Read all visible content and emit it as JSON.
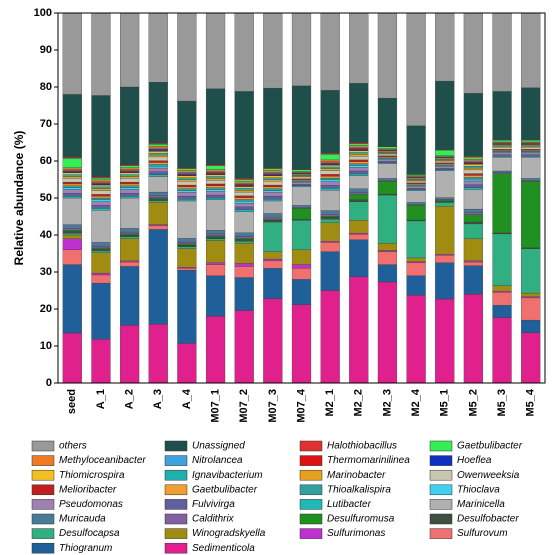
{
  "chart_data": {
    "type": "stacked_bar",
    "y_label": "Relative abundance (%)",
    "categories": [
      "seed",
      "A_1",
      "A_2",
      "A_3",
      "A_4",
      "M07_1",
      "M07_2",
      "M07_3",
      "M07_4",
      "M2_1",
      "M2_2",
      "M2_3",
      "M2_4",
      "M5_1",
      "M5_2",
      "M5_3",
      "M5_4"
    ],
    "ylim": [
      0,
      100
    ],
    "yticks": [
      0,
      10,
      20,
      30,
      40,
      50,
      60,
      70,
      80,
      90,
      100
    ],
    "series": [
      {
        "name": "Sedimenticola",
        "color": "#e0208c",
        "values": [
          13.5,
          11.8,
          15.6,
          15.9,
          10.7,
          18,
          19.6,
          22.8,
          21.2,
          25,
          28.7,
          27.3,
          23.7,
          22.7,
          24,
          17.7,
          13.6
        ]
      },
      {
        "name": "Thiogranum",
        "color": "#1f5f9a",
        "values": [
          18.5,
          15.2,
          15.9,
          25.6,
          19.8,
          11,
          8.9,
          8.2,
          6.8,
          10.5,
          10,
          4.7,
          5.3,
          9.8,
          7.7,
          3.3,
          3.4
        ]
      },
      {
        "name": "Sulfurovum",
        "color": "#f07070",
        "values": [
          4,
          2.2,
          1.2,
          1,
          0.5,
          3,
          3,
          2,
          3,
          2.5,
          1.5,
          3.5,
          3.5,
          2,
          1,
          3.5,
          6
        ]
      },
      {
        "name": "Sulfurimonas",
        "color": "#c030d0",
        "values": [
          3,
          0.5,
          0.3,
          0.3,
          0.3,
          0.5,
          0.8,
          0.5,
          1,
          0.3,
          0.3,
          0.3,
          0.3,
          0.3,
          0.3,
          0.3,
          0.3
        ]
      },
      {
        "name": "Winogradskyella",
        "color": "#a08c10",
        "values": [
          1,
          5.5,
          6,
          6,
          5,
          6,
          5.5,
          2,
          4,
          5,
          3.5,
          2,
          1,
          13,
          6,
          1.5,
          1
        ]
      },
      {
        "name": "Desulfocapsa",
        "color": "#30b080",
        "values": [
          0.5,
          0.5,
          0.5,
          0.5,
          0.5,
          0.5,
          0.5,
          8,
          8,
          1,
          5,
          13,
          10,
          1,
          4,
          14,
          12
        ]
      },
      {
        "name": "Desulfobacter",
        "color": "#405040",
        "values": [
          0.5,
          0.5,
          0.5,
          0.5,
          0.5,
          0.5,
          0.5,
          0.5,
          0.25,
          0.5,
          0.5,
          0.25,
          0.25,
          0.25,
          0.5,
          0.25,
          0.25
        ]
      },
      {
        "name": "Desulfuromusa",
        "color": "#209020",
        "values": [
          0.3,
          0.3,
          0.3,
          0.3,
          0.3,
          0.3,
          0.3,
          0.3,
          3,
          0.3,
          1.5,
          3.5,
          4,
          0.3,
          2,
          16,
          18
        ]
      },
      {
        "name": "Caldithrix",
        "color": "#8060a0",
        "values": [
          0.5,
          0.5,
          0.5,
          0.5,
          0.5,
          0.5,
          0.5,
          0.5,
          0.25,
          0.5,
          0.5,
          0.25,
          0.25,
          0.25,
          0.5,
          0.25,
          0.25
        ]
      },
      {
        "name": "Muricauda",
        "color": "#4a7a9a",
        "values": [
          1,
          1,
          1,
          1,
          1,
          1,
          1,
          1,
          0.5,
          1,
          1,
          0.5,
          0.5,
          0.5,
          1,
          0.5,
          0.5
        ]
      },
      {
        "name": "Marinicella",
        "color": "#b0b0b0",
        "values": [
          7.2,
          8.7,
          8.2,
          4.2,
          10.1,
          8.2,
          5.7,
          3.4,
          5.05,
          5.5,
          3.5,
          3.95,
          3.15,
          7.25,
          5.3,
          3.75,
          5.75
        ]
      },
      {
        "name": "Lutibacter",
        "color": "#20b8b8",
        "values": [
          0.5,
          0.5,
          0.5,
          0.5,
          0.5,
          0.5,
          0.5,
          0.5,
          0.25,
          0.5,
          0.5,
          0.25,
          0.25,
          0.25,
          0.5,
          0.25,
          0.25
        ]
      },
      {
        "name": "Fulvivirga",
        "color": "#6060a0",
        "values": [
          0.8,
          0.8,
          0.8,
          0.8,
          0.8,
          0.8,
          0.8,
          0.8,
          0.4,
          0.8,
          0.8,
          0.4,
          0.4,
          0.4,
          0.8,
          0.4,
          0.4
        ]
      },
      {
        "name": "Pseudomonas",
        "color": "#a080b0",
        "values": [
          1,
          1,
          1,
          1,
          1,
          1,
          1,
          1,
          0.5,
          1,
          1,
          0.5,
          0.5,
          0.5,
          1,
          0.5,
          0.5
        ]
      },
      {
        "name": "Thioclava",
        "color": "#40d0f0",
        "values": [
          0.5,
          0.5,
          0.5,
          0.5,
          0.5,
          0.5,
          0.5,
          0.5,
          0.25,
          0.5,
          0.5,
          0.25,
          0.25,
          0.25,
          0.5,
          0.25,
          0.25
        ]
      },
      {
        "name": "Thioalkalispira",
        "color": "#30a0a0",
        "values": [
          0.5,
          0.5,
          0.5,
          0.5,
          0.5,
          0.5,
          0.5,
          0.5,
          0.25,
          0.5,
          0.5,
          0.25,
          0.25,
          0.25,
          0.5,
          0.25,
          0.25
        ]
      },
      {
        "name": "Gaetbulibacter",
        "color": "#f0a030",
        "values": [
          0.5,
          0.5,
          0.5,
          0.5,
          0.5,
          0.5,
          0.5,
          0.5,
          0.25,
          0.5,
          0.5,
          0.25,
          0.25,
          0.25,
          0.5,
          0.25,
          0.25
        ]
      },
      {
        "name": "Melioribacter",
        "color": "#c02020",
        "values": [
          0.5,
          0.5,
          0.5,
          0.5,
          0.5,
          0.5,
          0.5,
          0.5,
          0.25,
          0.5,
          0.5,
          0.25,
          0.25,
          0.25,
          0.5,
          0.25,
          0.25
        ]
      },
      {
        "name": "Owenweeksia",
        "color": "#c8c8b0",
        "values": [
          1,
          1,
          1,
          1,
          1,
          1,
          1,
          1,
          0.5,
          1,
          1,
          0.5,
          0.5,
          0.5,
          1,
          0.5,
          0.5
        ]
      },
      {
        "name": "Marinobacter",
        "color": "#e8a020",
        "values": [
          0.5,
          0.5,
          0.5,
          0.5,
          0.5,
          0.5,
          0.5,
          0.5,
          0.25,
          0.5,
          0.5,
          0.25,
          0.25,
          0.25,
          0.5,
          0.25,
          0.25
        ]
      },
      {
        "name": "Ignavibacterium",
        "color": "#20b0b0",
        "values": [
          0.5,
          0.5,
          0.5,
          0.5,
          0.5,
          0.5,
          0.5,
          0.5,
          0.25,
          0.5,
          0.5,
          0.25,
          0.25,
          0.25,
          0.5,
          0.25,
          0.25
        ]
      },
      {
        "name": "Thiomicrospira",
        "color": "#f0c020",
        "values": [
          0.5,
          0.5,
          0.5,
          0.5,
          0.5,
          0.5,
          0.5,
          0.5,
          0.25,
          0.5,
          0.5,
          0.25,
          0.25,
          0.25,
          0.5,
          0.25,
          0.25
        ]
      },
      {
        "name": "Hoeflea",
        "color": "#1030c0",
        "values": [
          0.3,
          0.3,
          0.3,
          0.3,
          0.3,
          0.3,
          0.3,
          0.3,
          0.15,
          0.3,
          0.3,
          0.15,
          0.15,
          0.15,
          0.3,
          0.15,
          0.15
        ]
      },
      {
        "name": "Thermomarinilinea",
        "color": "#e01010",
        "values": [
          0.3,
          0.3,
          0.3,
          0.3,
          0.3,
          0.3,
          0.3,
          0.3,
          0.15,
          0.3,
          0.3,
          0.15,
          0.15,
          0.15,
          0.3,
          0.15,
          0.15
        ]
      },
      {
        "name": "Nitrolancea",
        "color": "#40a0e0",
        "values": [
          0.3,
          0.3,
          0.3,
          0.3,
          0.3,
          0.3,
          0.3,
          0.3,
          0.15,
          0.3,
          0.3,
          0.15,
          0.15,
          0.15,
          0.3,
          0.15,
          0.15
        ]
      },
      {
        "name": "Methyloceanibacter",
        "color": "#f07a20",
        "values": [
          0.5,
          0.5,
          0.5,
          0.5,
          0.5,
          0.5,
          0.5,
          0.5,
          0.25,
          0.5,
          0.5,
          0.25,
          0.25,
          0.25,
          0.5,
          0.25,
          0.25
        ]
      },
      {
        "name": "Gaetbulibacter",
        "color": "#33ee55",
        "values": [
          2.5,
          0.5,
          0.5,
          0.5,
          0.5,
          1,
          0.5,
          0.5,
          0.5,
          1.5,
          0.5,
          0.5,
          0.3,
          1.5,
          0.5,
          0.5,
          0.5
        ]
      },
      {
        "name": "Halothiobacillus",
        "color": "#e03030",
        "values": [
          0.3,
          0.3,
          0.3,
          0.3,
          0.3,
          0.3,
          0.3,
          0.3,
          0.15,
          0.3,
          0.3,
          0.15,
          0.15,
          0.15,
          0.3,
          0.15,
          0.15
        ]
      },
      {
        "name": "Unassigned",
        "color": "#1f4f4a",
        "values": [
          17,
          22,
          21,
          16.5,
          18,
          20.5,
          23.5,
          21.5,
          22.5,
          17,
          16,
          13,
          13,
          18.5,
          17,
          13,
          14
        ]
      },
      {
        "name": "others",
        "color": "#999999",
        "values": [
          22,
          22.3,
          20,
          18.7,
          23.8,
          20.5,
          21.2,
          20.3,
          19.7,
          20.9,
          19,
          23,
          30.5,
          18.4,
          21.7,
          21.2,
          20.2
        ]
      }
    ]
  }
}
